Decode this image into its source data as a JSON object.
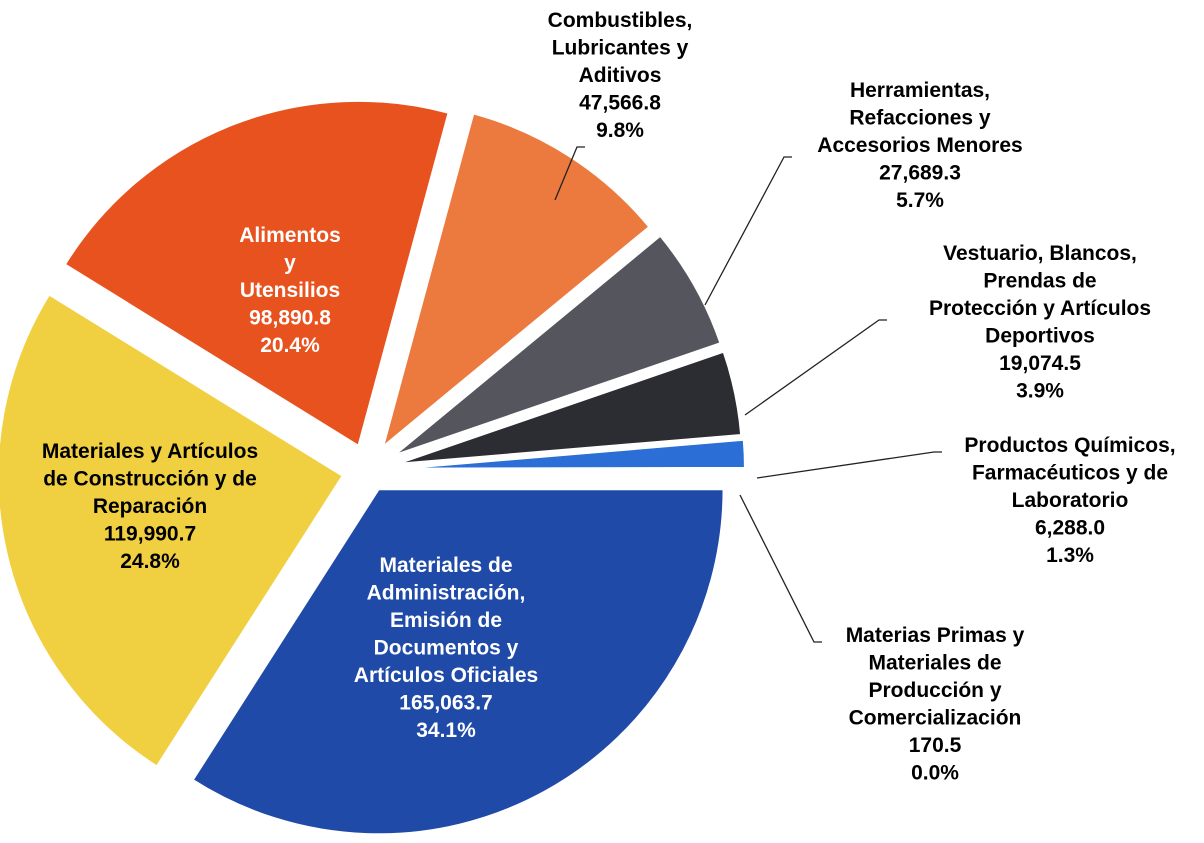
{
  "chart_data": {
    "type": "pie",
    "categories": [
      [
        "Materiales de",
        "Administración,",
        "Emisión de",
        "Documentos y",
        "Artículos Oficiales"
      ],
      [
        "Materiales y Artículos",
        "de Construcción y de",
        "Reparación"
      ],
      [
        "Alimentos",
        "y",
        "Utensilios"
      ],
      [
        "Combustibles,",
        "Lubricantes y",
        "Aditivos"
      ],
      [
        "Herramientas,",
        "Refacciones y",
        "Accesorios Menores"
      ],
      [
        "Vestuario, Blancos,",
        "Prendas de",
        "Protección y Artículos",
        "Deportivos"
      ],
      [
        "Productos Químicos,",
        "Farmacéuticos y de",
        "Laboratorio"
      ],
      [
        "Materias Primas y",
        "Materiales de",
        "Producción y",
        "Comercialización"
      ]
    ],
    "values": [
      165063.7,
      119990.7,
      98890.8,
      47566.8,
      27689.3,
      19074.5,
      6288.0,
      170.5
    ],
    "value_labels": [
      "165,063.7",
      "119,990.7",
      "98,890.8",
      "47,566.8",
      "27,689.3",
      "19,074.5",
      "6,288.0",
      "170.5"
    ],
    "percentages": [
      34.1,
      24.8,
      20.4,
      9.8,
      5.7,
      3.9,
      1.3,
      0.0
    ],
    "percentage_labels": [
      "34.1%",
      "24.8%",
      "20.4%",
      "9.8%",
      "5.7%",
      "3.9%",
      "1.3%",
      "0.0%"
    ],
    "colors": [
      "#1f4aa8",
      "#f0d040",
      "#e8521f",
      "#ec7a3e",
      "#55555d",
      "#2c2c33",
      "#2a6ed6",
      "#1d3f8a"
    ]
  }
}
